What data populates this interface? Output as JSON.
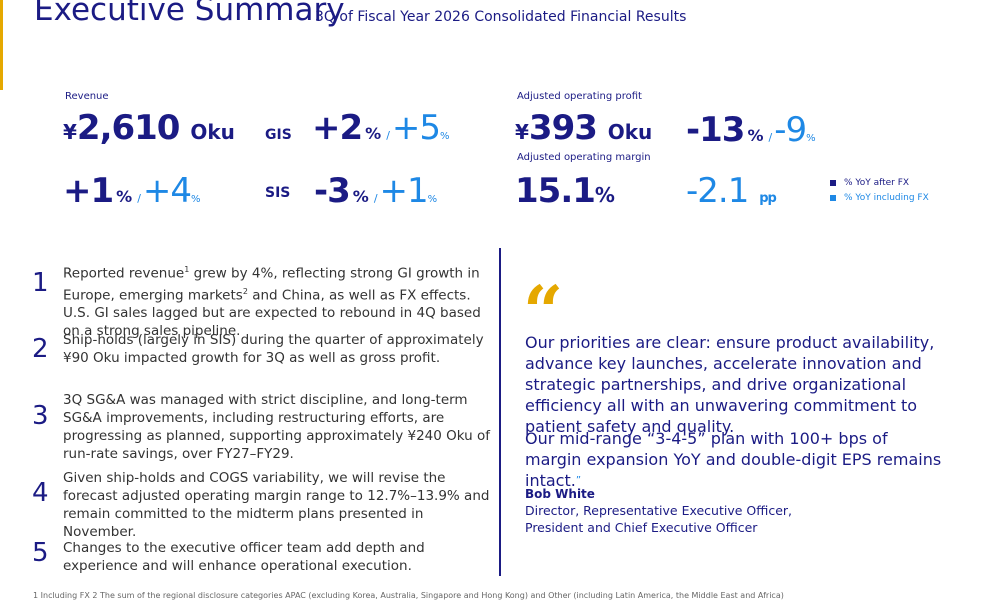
{
  "header": {
    "title": "Executive Summary",
    "subtitle": "3Q of Fiscal Year 2026 Consolidated Financial Results"
  },
  "symbols": {
    "percent": "%",
    "separator": "/"
  },
  "metrics": {
    "revenue": {
      "label": "Revenue",
      "currency": "¥",
      "amount": "2,610",
      "unit": "Oku",
      "after_fx": "+1",
      "including_fx": "+4"
    },
    "gis": {
      "label": "GIS",
      "after_fx": "+2",
      "including_fx": "+5"
    },
    "sis": {
      "label": "SIS",
      "after_fx": "-3",
      "including_fx": "+1"
    },
    "operating_profit": {
      "label": "Adjusted operating profit",
      "currency": "¥",
      "amount": "393",
      "unit": "Oku",
      "after_fx": "-13",
      "including_fx": "-9"
    },
    "operating_margin": {
      "label": "Adjusted operating margin",
      "amount": "15.1",
      "unit": "%",
      "change": "-2.1",
      "change_unit": "pp"
    }
  },
  "legend": [
    {
      "label": "% YoY after FX",
      "color": "#1b1b84"
    },
    {
      "label": "% YoY including FX",
      "color": "#1e88e5"
    }
  ],
  "items": [
    {
      "number": "1",
      "text": [
        {
          "text": "Reported revenue"
        },
        {
          "text": "1",
          "style": "superscript"
        },
        {
          "text": " grew by 4%, reflecting strong GI growth in Europe, emerging markets"
        },
        {
          "text": "2",
          "style": "superscript"
        },
        {
          "text": " and China, as well as FX effects. U.S. GI sales lagged but are expected to rebound in 4Q based on a strong sales pipeline."
        }
      ]
    },
    {
      "number": "2",
      "text": [
        {
          "text": "Ship-holds (largely in SIS) during the quarter of approximately ¥90 Oku impacted growth for 3Q as well as gross profit."
        }
      ]
    },
    {
      "number": "3",
      "text": [
        {
          "text": "3Q SG&A was managed with strict discipline, and long-term SG&A improvements, including restructuring efforts, are progressing as planned, supporting approximately ¥240 Oku of run-rate savings, over FY27–FY29."
        }
      ]
    },
    {
      "number": "4",
      "text": [
        {
          "text": "Given ship-holds and COGS variability, we will revise the forecast adjusted operating margin range to 12.7%–13.9% and remain committed to the midterm plans presented in November."
        }
      ]
    },
    {
      "number": "5",
      "text": [
        {
          "text": "Changes to the executive officer team add depth and experience and will enhance operational execution."
        }
      ]
    }
  ],
  "quote": {
    "open_mark": "“",
    "paragraphs": [
      "Our priorities are clear: ensure product availability, advance key launches, accelerate innovation and strategic partnerships, and drive organizational efficiency all with an unwavering commitment to patient safety and quality.",
      "Our mid-range “3-4-5” plan with 100+ bps of margin expansion YoY and double-digit EPS remains intact."
    ],
    "close_mark": "”",
    "author": "Bob White",
    "roles": [
      "Director, Representative Executive Officer,",
      "President and Chief Executive Officer"
    ]
  },
  "footnotes": [
    "1 Including FX",
    "2 The sum of the regional disclosure categories APAC (excluding Korea, Australia, Singapore and Hong Kong) and Other (including Latin America, the Middle East and Africa)"
  ]
}
